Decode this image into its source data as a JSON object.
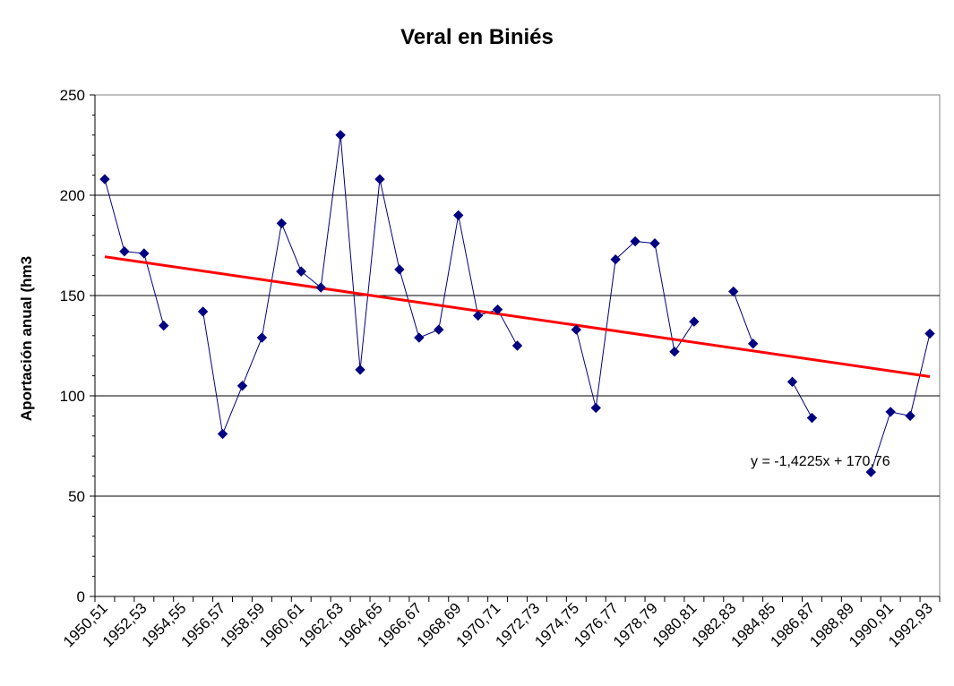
{
  "chart_data": {
    "type": "line",
    "title": "Veral en Biniés",
    "ylabel": "Aportación anual (hm3",
    "xlabel": "",
    "ylim": [
      0,
      250
    ],
    "yticks": [
      0,
      50,
      100,
      150,
      200,
      250
    ],
    "xtick_labels": [
      "1950,51",
      "1952,53",
      "1954,55",
      "1956,57",
      "1958,59",
      "1960,61",
      "1962,63",
      "1964,65",
      "1966,67",
      "1968,69",
      "1970,71",
      "1972,73",
      "1974,75",
      "1976,77",
      "1978,79",
      "1980,81",
      "1982,83",
      "1984,85",
      "1986,87",
      "1988,89",
      "1990,91",
      "1992,93"
    ],
    "categories": [
      "1950,51",
      "1951,52",
      "1952,53",
      "1953,54",
      "1954,55",
      "1955,56",
      "1956,57",
      "1957,58",
      "1958,59",
      "1959,60",
      "1960,61",
      "1961,62",
      "1962,63",
      "1963,64",
      "1964,65",
      "1965,66",
      "1966,67",
      "1967,68",
      "1968,69",
      "1969,70",
      "1970,71",
      "1971,72",
      "1972,73",
      "1973,74",
      "1974,75",
      "1975,76",
      "1976,77",
      "1977,78",
      "1978,79",
      "1979,80",
      "1980,81",
      "1981,82",
      "1982,83",
      "1983,84",
      "1984,85",
      "1985,86",
      "1986,87",
      "1987,88",
      "1988,89",
      "1989,90",
      "1990,91",
      "1991,92",
      "1992,93"
    ],
    "series": [
      {
        "color": "#000080",
        "values": [
          208,
          172,
          171,
          135,
          null,
          142,
          81,
          105,
          129,
          186,
          162,
          154,
          230,
          113,
          208,
          163,
          129,
          133,
          190,
          140,
          143,
          125,
          null,
          null,
          133,
          94,
          168,
          177,
          176,
          122,
          137,
          null,
          152,
          126,
          null,
          107,
          89,
          null,
          null,
          62,
          92,
          90,
          131
        ]
      }
    ],
    "trendline": {
      "color": "#ff0000",
      "equation": "y = -1,4225x + 170,76",
      "slope": -1.4225,
      "intercept": 170.76
    },
    "grid": true,
    "legend": "none"
  }
}
